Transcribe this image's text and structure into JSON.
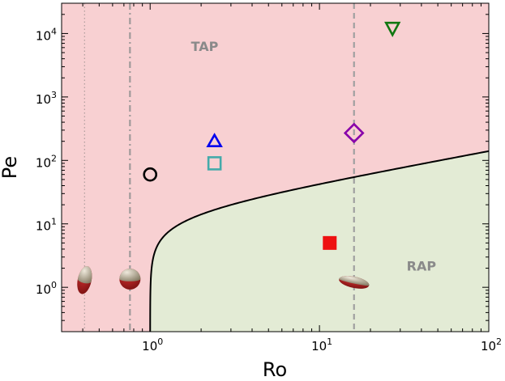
{
  "chart_data": {
    "type": "scatter",
    "xlabel": "Ro",
    "ylabel": "Pe",
    "xscale": "log",
    "yscale": "log",
    "xlim": [
      0.3,
      100
    ],
    "ylim": [
      0.2,
      30000
    ],
    "x_ticks": [
      {
        "value": 1,
        "base": "10",
        "exp": "0"
      },
      {
        "value": 10,
        "base": "10",
        "exp": "1"
      },
      {
        "value": 100,
        "base": "10",
        "exp": "2"
      }
    ],
    "y_ticks": [
      {
        "value": 1,
        "base": "10",
        "exp": "0"
      },
      {
        "value": 10,
        "base": "10",
        "exp": "1"
      },
      {
        "value": 100,
        "base": "10",
        "exp": "2"
      },
      {
        "value": 1000,
        "base": "10",
        "exp": "3"
      },
      {
        "value": 10000,
        "base": "10",
        "exp": "4"
      }
    ],
    "regions": [
      {
        "label": "TAP",
        "color": "#f8d0d2",
        "label_x": 2.1,
        "label_y": 6300
      },
      {
        "label": "RAP",
        "color": "#e3ebd5",
        "label_x": 40,
        "label_y": 2.2
      }
    ],
    "boundary_curve": {
      "color": "#000000",
      "x_start": 1.0,
      "x_end": 100,
      "y_at_100": 140
    },
    "vertical_lines": [
      {
        "x": 0.41,
        "style": "dotted",
        "color": "#b3a0a0"
      },
      {
        "x": 0.76,
        "style": "dashdot",
        "color": "#a09a9a"
      },
      {
        "x": 16,
        "style": "dashed",
        "color": "#a0a0a0"
      }
    ],
    "markers": [
      {
        "shape": "circle",
        "x": 1.0,
        "y": 60,
        "color": "#000000",
        "filled": false
      },
      {
        "shape": "triangle-up",
        "x": 2.4,
        "y": 200,
        "color": "#0000ee",
        "filled": false
      },
      {
        "shape": "square",
        "x": 2.4,
        "y": 90,
        "color": "#44aaaa",
        "filled": false
      },
      {
        "shape": "diamond",
        "x": 16,
        "y": 270,
        "color": "#8800aa",
        "filled": false
      },
      {
        "shape": "triangle-down",
        "x": 27,
        "y": 12000,
        "color": "#117711",
        "filled": false
      },
      {
        "shape": "square",
        "x": 11.5,
        "y": 5,
        "color": "#ee1111",
        "filled": true
      }
    ],
    "particle_icons": [
      {
        "name": "prolate-particle-icon",
        "x": 0.41,
        "y": 1.3,
        "kind": "prolate"
      },
      {
        "name": "sphere-particle-icon",
        "x": 0.76,
        "y": 1.35,
        "kind": "sphere"
      },
      {
        "name": "oblate-particle-icon",
        "x": 16,
        "y": 1.2,
        "kind": "oblate"
      }
    ],
    "colors": {
      "particle_top": "#a59c82",
      "particle_bottom": "#a01818"
    }
  }
}
